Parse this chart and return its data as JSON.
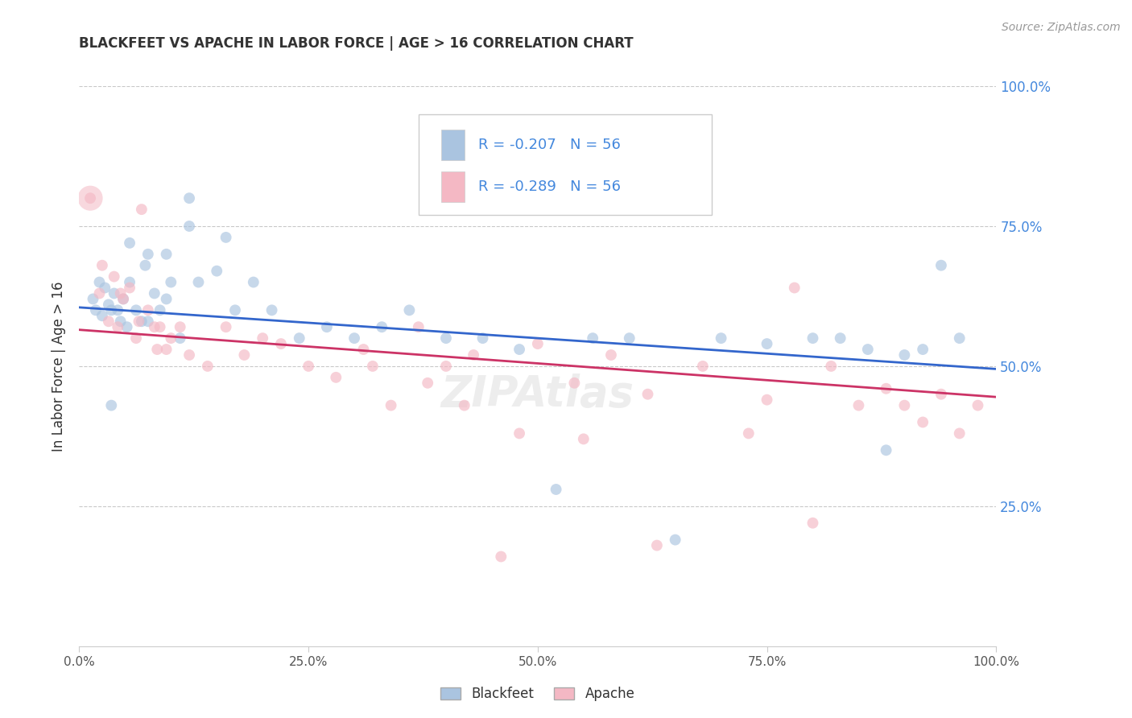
{
  "title": "BLACKFEET VS APACHE IN LABOR FORCE | AGE > 16 CORRELATION CHART",
  "source": "Source: ZipAtlas.com",
  "ylabel": "In Labor Force | Age > 16",
  "legend_blackfeet": "Blackfeet",
  "legend_apache": "Apache",
  "R_blackfeet": -0.207,
  "N_blackfeet": 56,
  "R_apache": -0.289,
  "N_apache": 56,
  "color_blackfeet": "#aac4e0",
  "color_apache": "#f4b8c4",
  "line_color_blackfeet": "#3366cc",
  "line_color_apache": "#cc3366",
  "label_color": "#4488dd",
  "background_color": "#ffffff",
  "grid_color": "#bbbbbb",
  "xlim": [
    0.0,
    1.0
  ],
  "ylim": [
    0.0,
    1.0
  ],
  "blackfeet_x": [
    0.015,
    0.018,
    0.022,
    0.025,
    0.028,
    0.032,
    0.035,
    0.038,
    0.042,
    0.045,
    0.048,
    0.052,
    0.055,
    0.062,
    0.068,
    0.072,
    0.075,
    0.082,
    0.088,
    0.095,
    0.1,
    0.11,
    0.12,
    0.13,
    0.15,
    0.17,
    0.19,
    0.21,
    0.24,
    0.27,
    0.3,
    0.33,
    0.36,
    0.4,
    0.44,
    0.48,
    0.52,
    0.56,
    0.6,
    0.65,
    0.7,
    0.75,
    0.8,
    0.83,
    0.86,
    0.88,
    0.9,
    0.92,
    0.94,
    0.96,
    0.035,
    0.055,
    0.075,
    0.095,
    0.12,
    0.16
  ],
  "blackfeet_y": [
    0.62,
    0.6,
    0.65,
    0.59,
    0.64,
    0.61,
    0.6,
    0.63,
    0.6,
    0.58,
    0.62,
    0.57,
    0.65,
    0.6,
    0.58,
    0.68,
    0.58,
    0.63,
    0.6,
    0.62,
    0.65,
    0.55,
    0.75,
    0.65,
    0.67,
    0.6,
    0.65,
    0.6,
    0.55,
    0.57,
    0.55,
    0.57,
    0.6,
    0.55,
    0.55,
    0.53,
    0.28,
    0.55,
    0.55,
    0.19,
    0.55,
    0.54,
    0.55,
    0.55,
    0.53,
    0.35,
    0.52,
    0.53,
    0.68,
    0.55,
    0.43,
    0.72,
    0.7,
    0.7,
    0.8,
    0.73
  ],
  "apache_x": [
    0.012,
    0.022,
    0.032,
    0.038,
    0.042,
    0.048,
    0.055,
    0.062,
    0.068,
    0.075,
    0.082,
    0.088,
    0.095,
    0.1,
    0.11,
    0.12,
    0.14,
    0.16,
    0.18,
    0.2,
    0.22,
    0.25,
    0.28,
    0.31,
    0.34,
    0.37,
    0.4,
    0.43,
    0.46,
    0.5,
    0.54,
    0.58,
    0.63,
    0.68,
    0.73,
    0.78,
    0.82,
    0.85,
    0.88,
    0.9,
    0.92,
    0.94,
    0.96,
    0.98,
    0.025,
    0.045,
    0.065,
    0.085,
    0.32,
    0.38,
    0.42,
    0.48,
    0.55,
    0.62,
    0.75,
    0.8
  ],
  "apache_y": [
    0.8,
    0.63,
    0.58,
    0.66,
    0.57,
    0.62,
    0.64,
    0.55,
    0.78,
    0.6,
    0.57,
    0.57,
    0.53,
    0.55,
    0.57,
    0.52,
    0.5,
    0.57,
    0.52,
    0.55,
    0.54,
    0.5,
    0.48,
    0.53,
    0.43,
    0.57,
    0.5,
    0.52,
    0.16,
    0.54,
    0.47,
    0.52,
    0.18,
    0.5,
    0.38,
    0.64,
    0.5,
    0.43,
    0.46,
    0.43,
    0.4,
    0.45,
    0.38,
    0.43,
    0.68,
    0.63,
    0.58,
    0.53,
    0.5,
    0.47,
    0.43,
    0.38,
    0.37,
    0.45,
    0.44,
    0.22
  ],
  "blackfeet_marker_size": 100,
  "apache_marker_size": 100,
  "apache_large_size": 500
}
